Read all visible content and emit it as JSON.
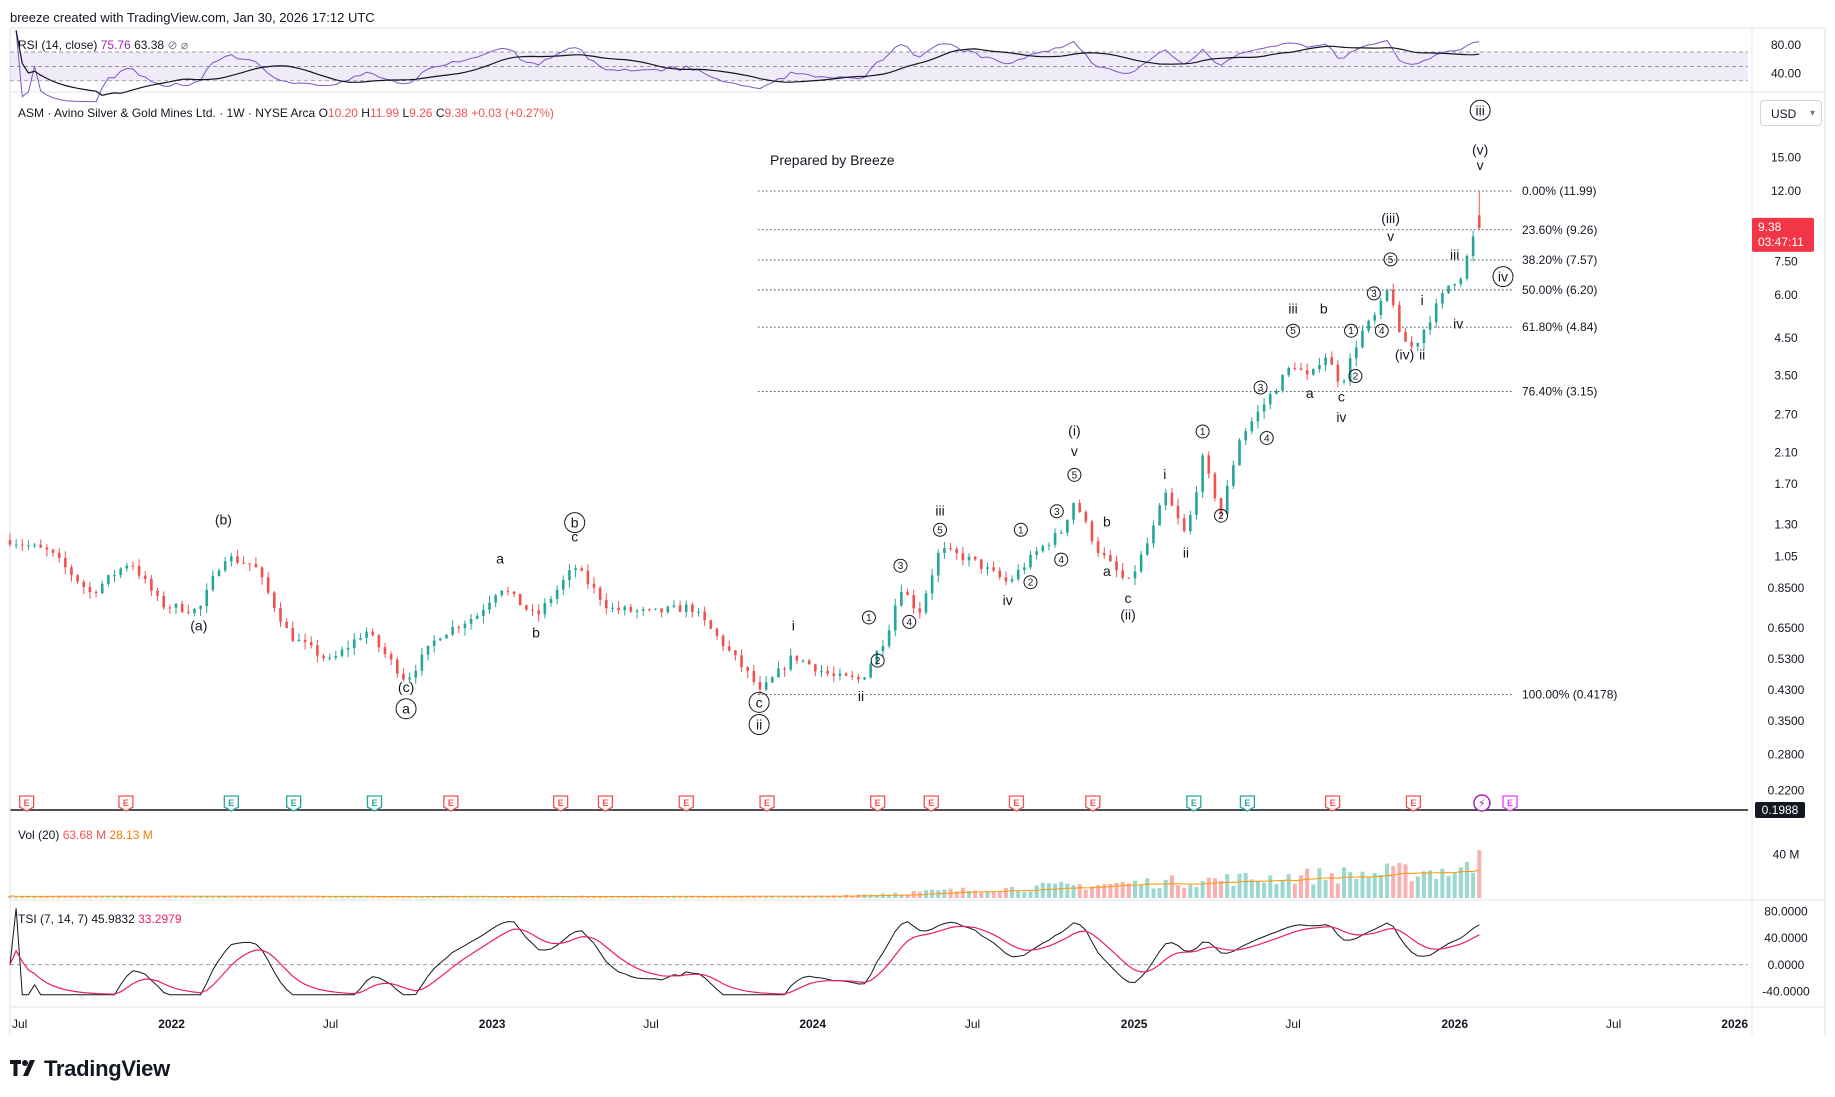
{
  "header": {
    "credit": "breeze created with TradingView.com, Jan 30, 2026 17:12 UTC"
  },
  "rsi_legend": {
    "name": "RSI (14, close)",
    "value1": "75.76",
    "value2": "63.38",
    "icons": [
      "eye-off-icon",
      "gear-icon"
    ],
    "axis": [
      "80.00",
      "40.00"
    ]
  },
  "symbol_legend": {
    "title": "ASM · Avino Silver & Gold Mines Ltd. · 1W · NYSE Arca",
    "o_label": "O",
    "o": "10.20",
    "h_label": "H",
    "h": "11.99",
    "l_label": "L",
    "l": "9.26",
    "c_label": "C",
    "c": "9.38",
    "change": "+0.03 (+0.27%)"
  },
  "currency": "USD",
  "annotation_note": "Prepared by Breeze",
  "price_badge": {
    "price": "9.38",
    "countdown": "03:47:11"
  },
  "low_badge": "0.1988",
  "vol_legend": {
    "name": "Vol (20)",
    "v1": "63.68 M",
    "v2": "28.13 M",
    "axis": "40 M"
  },
  "tsi_legend": {
    "name": "TSI (7, 14, 7)",
    "v1": "45.9832",
    "v2": "33.2979",
    "axis": [
      "80.0000",
      "40.0000",
      "0.0000",
      "-40.0000"
    ]
  },
  "time_axis": [
    "Jul",
    "2022",
    "Jul",
    "2023",
    "Jul",
    "2024",
    "Jul",
    "2025",
    "Jul",
    "2026",
    "Jul",
    "2026"
  ],
  "brand": "TradingView",
  "colors": {
    "up": "#26a69a",
    "down": "#ef5350",
    "rsi": "#7e57c2",
    "rsi_ma": "#131722",
    "tsi": "#131722",
    "tsi_signal": "#e91e63",
    "vol_ma": "#ff9800",
    "fib": "#131722"
  },
  "chart_data": {
    "type": "candlestick",
    "y_scale": "log",
    "y_ticks": [
      "19.00",
      "15.00",
      "12.00",
      "9.50",
      "7.50",
      "6.00",
      "4.50",
      "3.50",
      "2.70",
      "2.10",
      "1.70",
      "1.30",
      "1.05",
      "0.8500",
      "0.6500",
      "0.5300",
      "0.4300",
      "0.3500",
      "0.2800",
      "0.2200"
    ],
    "ylim": [
      0.2,
      22
    ],
    "x_range": [
      "2021-07",
      "2026-12"
    ],
    "fib_levels": [
      {
        "label": "0.00% (11.99)",
        "price": 11.99
      },
      {
        "label": "23.60% (9.26)",
        "price": 9.26
      },
      {
        "label": "38.20% (7.57)",
        "price": 7.57
      },
      {
        "label": "50.00% (6.20)",
        "price": 6.2
      },
      {
        "label": "61.80% (4.84)",
        "price": 4.84
      },
      {
        "label": "76.40% (3.15)",
        "price": 3.15
      },
      {
        "label": "100.00% (0.4178)",
        "price": 0.4178
      }
    ],
    "price_path": [
      [
        "2021-07-01",
        1.17
      ],
      [
        "2021-08-15",
        1.08
      ],
      [
        "2021-10-01",
        0.82
      ],
      [
        "2021-11-15",
        1.02
      ],
      [
        "2021-12-20",
        0.76
      ],
      [
        "2022-02-01",
        0.73
      ],
      [
        "2022-03-01",
        1.05
      ],
      [
        "2022-04-05",
        0.99
      ],
      [
        "2022-05-15",
        0.62
      ],
      [
        "2022-07-01",
        0.52
      ],
      [
        "2022-08-10",
        0.64
      ],
      [
        "2022-09-25",
        0.46
      ],
      [
        "2022-11-01",
        0.62
      ],
      [
        "2022-12-15",
        0.71
      ],
      [
        "2023-01-10",
        0.86
      ],
      [
        "2023-02-20",
        0.7
      ],
      [
        "2023-04-05",
        0.98
      ],
      [
        "2023-05-15",
        0.74
      ],
      [
        "2023-07-01",
        0.72
      ],
      [
        "2023-08-15",
        0.75
      ],
      [
        "2023-09-15",
        0.61
      ],
      [
        "2023-10-25",
        0.46
      ],
      [
        "2023-11-01",
        0.42
      ],
      [
        "2023-12-10",
        0.54
      ],
      [
        "2024-01-25",
        0.47
      ],
      [
        "2024-02-25",
        0.46
      ],
      [
        "2024-03-25",
        0.62
      ],
      [
        "2024-04-10",
        0.86
      ],
      [
        "2024-05-01",
        0.72
      ],
      [
        "2024-05-25",
        1.1
      ],
      [
        "2024-07-01",
        1.02
      ],
      [
        "2024-08-10",
        0.88
      ],
      [
        "2024-09-15",
        1.1
      ],
      [
        "2024-10-10",
        1.24
      ],
      [
        "2024-10-25",
        1.53
      ],
      [
        "2024-11-20",
        1.1
      ],
      [
        "2024-12-25",
        0.87
      ],
      [
        "2025-01-20",
        1.2
      ],
      [
        "2025-02-05",
        1.6
      ],
      [
        "2025-03-01",
        1.2
      ],
      [
        "2025-03-20",
        2.0
      ],
      [
        "2025-04-10",
        1.4
      ],
      [
        "2025-05-01",
        2.3
      ],
      [
        "2025-06-10",
        3.2
      ],
      [
        "2025-07-01",
        3.8
      ],
      [
        "2025-07-20",
        3.4
      ],
      [
        "2025-08-05",
        4.1
      ],
      [
        "2025-08-25",
        3.3
      ],
      [
        "2025-09-15",
        4.6
      ],
      [
        "2025-10-05",
        5.3
      ],
      [
        "2025-10-20",
        6.5
      ],
      [
        "2025-10-28",
        4.6
      ],
      [
        "2025-11-15",
        4.2
      ],
      [
        "2025-12-05",
        5.2
      ],
      [
        "2025-12-25",
        6.4
      ],
      [
        "2026-01-10",
        6.9
      ],
      [
        "2026-01-20",
        8.6
      ],
      [
        "2026-01-30",
        9.38
      ]
    ],
    "last_candle": {
      "open": 10.2,
      "high": 11.99,
      "low": 9.26,
      "close": 9.38
    },
    "wave_labels": [
      {
        "text": "(b)",
        "date": "2022-03-01",
        "price": 1.3,
        "style": "plain"
      },
      {
        "text": "(a)",
        "date": "2022-02-01",
        "price": 0.64,
        "style": "plain"
      },
      {
        "text": "(c)",
        "date": "2022-09-25",
        "price": 0.425,
        "style": "plain"
      },
      {
        "text": "a",
        "date": "2022-09-25",
        "price": 0.37,
        "style": "circle"
      },
      {
        "text": "a",
        "date": "2023-01-10",
        "price": 1.0,
        "style": "plain"
      },
      {
        "text": "b",
        "date": "2023-02-20",
        "price": 0.61,
        "style": "plain"
      },
      {
        "text": "b",
        "date": "2023-04-05",
        "price": 1.28,
        "style": "circle"
      },
      {
        "text": "c",
        "date": "2023-04-05",
        "price": 1.16,
        "style": "plain"
      },
      {
        "text": "c",
        "date": "2023-11-01",
        "price": 0.386,
        "style": "circle"
      },
      {
        "text": "ii",
        "date": "2023-11-01",
        "price": 0.333,
        "style": "circle"
      },
      {
        "text": "i",
        "date": "2023-12-10",
        "price": 0.64,
        "style": "plain"
      },
      {
        "text": "ii",
        "date": "2024-02-25",
        "price": 0.4,
        "style": "plain"
      },
      {
        "text": "1",
        "date": "2024-03-05",
        "price": 0.68,
        "style": "small"
      },
      {
        "text": "2",
        "date": "2024-03-15",
        "price": 0.51,
        "style": "small"
      },
      {
        "text": "3",
        "date": "2024-04-10",
        "price": 0.96,
        "style": "small"
      },
      {
        "text": "4",
        "date": "2024-04-20",
        "price": 0.66,
        "style": "small"
      },
      {
        "text": "iii",
        "date": "2024-05-25",
        "price": 1.38,
        "style": "plain"
      },
      {
        "text": "5",
        "date": "2024-05-25",
        "price": 1.22,
        "style": "small"
      },
      {
        "text": "iv",
        "date": "2024-08-10",
        "price": 0.76,
        "style": "plain"
      },
      {
        "text": "1",
        "date": "2024-08-25",
        "price": 1.22,
        "style": "small"
      },
      {
        "text": "2",
        "date": "2024-09-05",
        "price": 0.86,
        "style": "small"
      },
      {
        "text": "3",
        "date": "2024-10-05",
        "price": 1.38,
        "style": "small"
      },
      {
        "text": "4",
        "date": "2024-10-10",
        "price": 1.0,
        "style": "small"
      },
      {
        "text": "(i)",
        "date": "2024-10-25",
        "price": 2.35,
        "style": "plain"
      },
      {
        "text": "v",
        "date": "2024-10-25",
        "price": 2.05,
        "style": "plain"
      },
      {
        "text": "5",
        "date": "2024-10-25",
        "price": 1.76,
        "style": "small"
      },
      {
        "text": "b",
        "date": "2024-12-01",
        "price": 1.28,
        "style": "plain"
      },
      {
        "text": "a",
        "date": "2024-12-01",
        "price": 0.92,
        "style": "plain"
      },
      {
        "text": "c",
        "date": "2024-12-25",
        "price": 0.77,
        "style": "plain"
      },
      {
        "text": "(ii)",
        "date": "2024-12-25",
        "price": 0.69,
        "style": "plain"
      },
      {
        "text": "i",
        "date": "2025-02-05",
        "price": 1.76,
        "style": "plain"
      },
      {
        "text": "ii",
        "date": "2025-03-01",
        "price": 1.04,
        "style": "plain"
      },
      {
        "text": "1",
        "date": "2025-03-20",
        "price": 2.35,
        "style": "small"
      },
      {
        "text": "2",
        "date": "2025-04-10",
        "price": 1.34,
        "style": "small"
      },
      {
        "text": "3",
        "date": "2025-05-25",
        "price": 3.15,
        "style": "small"
      },
      {
        "text": "4",
        "date": "2025-06-01",
        "price": 2.25,
        "style": "small"
      },
      {
        "text": "iii",
        "date": "2025-07-01",
        "price": 5.3,
        "style": "plain"
      },
      {
        "text": "5",
        "date": "2025-07-01",
        "price": 4.6,
        "style": "small"
      },
      {
        "text": "a",
        "date": "2025-07-20",
        "price": 3.02,
        "style": "plain"
      },
      {
        "text": "b",
        "date": "2025-08-05",
        "price": 5.3,
        "style": "plain"
      },
      {
        "text": "c",
        "date": "2025-08-25",
        "price": 2.95,
        "style": "plain"
      },
      {
        "text": "iv",
        "date": "2025-08-25",
        "price": 2.57,
        "style": "plain"
      },
      {
        "text": "1",
        "date": "2025-09-05",
        "price": 4.6,
        "style": "small"
      },
      {
        "text": "2",
        "date": "2025-09-10",
        "price": 3.4,
        "style": "small"
      },
      {
        "text": "3",
        "date": "2025-10-01",
        "price": 5.9,
        "style": "small"
      },
      {
        "text": "4",
        "date": "2025-10-10",
        "price": 4.6,
        "style": "small"
      },
      {
        "text": "(iii)",
        "date": "2025-10-20",
        "price": 9.7,
        "style": "plain"
      },
      {
        "text": "v",
        "date": "2025-10-20",
        "price": 8.6,
        "style": "plain"
      },
      {
        "text": "5",
        "date": "2025-10-20",
        "price": 7.4,
        "style": "small"
      },
      {
        "text": "i",
        "date": "2025-11-25",
        "price": 5.6,
        "style": "plain"
      },
      {
        "text": "(iv)",
        "date": "2025-11-05",
        "price": 3.9,
        "style": "plain"
      },
      {
        "text": "ii",
        "date": "2025-11-25",
        "price": 3.9,
        "style": "plain"
      },
      {
        "text": "iii",
        "date": "2026-01-01",
        "price": 7.6,
        "style": "plain"
      },
      {
        "text": "iv",
        "date": "2026-01-05",
        "price": 4.8,
        "style": "plain"
      },
      {
        "text": "iii",
        "date": "2026-01-30",
        "price": 20.0,
        "style": "circle"
      },
      {
        "text": "(v)",
        "date": "2026-01-30",
        "price": 15.3,
        "style": "plain"
      },
      {
        "text": "v",
        "date": "2026-01-30",
        "price": 13.8,
        "style": "plain"
      },
      {
        "text": "iv",
        "date": "2026-02-25",
        "price": 6.6,
        "style": "circle"
      }
    ],
    "events": [
      {
        "date": "2021-07-20",
        "type": "E",
        "color": "red"
      },
      {
        "date": "2021-11-10",
        "type": "E",
        "color": "red"
      },
      {
        "date": "2022-03-10",
        "type": "E",
        "color": "green"
      },
      {
        "date": "2022-05-20",
        "type": "E",
        "color": "green"
      },
      {
        "date": "2022-08-20",
        "type": "E",
        "color": "green"
      },
      {
        "date": "2022-11-15",
        "type": "E",
        "color": "red"
      },
      {
        "date": "2023-03-20",
        "type": "E",
        "color": "red"
      },
      {
        "date": "2023-05-10",
        "type": "E",
        "color": "red"
      },
      {
        "date": "2023-08-10",
        "type": "E",
        "color": "red"
      },
      {
        "date": "2023-11-10",
        "type": "E",
        "color": "red"
      },
      {
        "date": "2024-03-15",
        "type": "E",
        "color": "red"
      },
      {
        "date": "2024-05-15",
        "type": "E",
        "color": "red"
      },
      {
        "date": "2024-08-20",
        "type": "E",
        "color": "red"
      },
      {
        "date": "2024-11-15",
        "type": "E",
        "color": "red"
      },
      {
        "date": "2025-03-10",
        "type": "E",
        "color": "green"
      },
      {
        "date": "2025-05-10",
        "type": "E",
        "color": "green"
      },
      {
        "date": "2025-08-15",
        "type": "E",
        "color": "red"
      },
      {
        "date": "2025-11-15",
        "type": "E",
        "color": "red"
      },
      {
        "date": "2026-02-01",
        "type": "bolt",
        "color": "purple"
      },
      {
        "date": "2026-03-05",
        "type": "E",
        "color": "magenta"
      }
    ]
  }
}
